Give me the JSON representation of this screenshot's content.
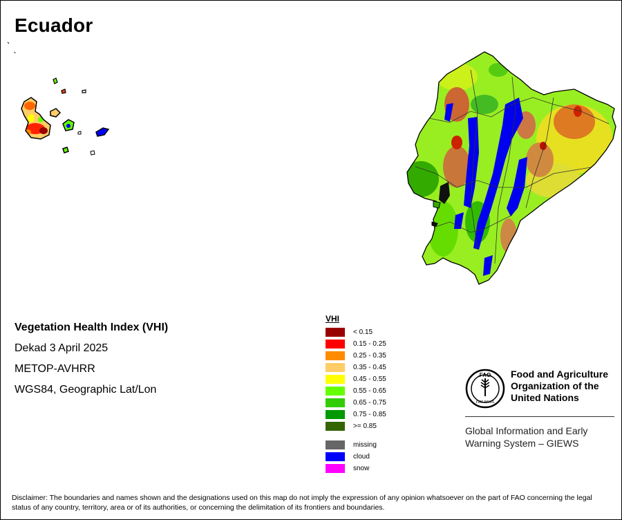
{
  "map": {
    "title": "Ecuador"
  },
  "info": {
    "index_name": "Vegetation Health Index (VHI)",
    "period": "Dekad 3 April 2025",
    "sensor": "METOP-AVHRR",
    "projection": "WGS84, Geographic Lat/Lon"
  },
  "legend": {
    "title": "VHI",
    "classes": [
      {
        "label": "< 0.15",
        "color": "#990000"
      },
      {
        "label": "0.15 - 0.25",
        "color": "#ff0000"
      },
      {
        "label": "0.25 - 0.35",
        "color": "#ff8c00"
      },
      {
        "label": "0.35 - 0.45",
        "color": "#ffcc66"
      },
      {
        "label": "0.45 - 0.55",
        "color": "#ffff00"
      },
      {
        "label": "0.55 - 0.65",
        "color": "#66ff00"
      },
      {
        "label": "0.65 - 0.75",
        "color": "#33cc00"
      },
      {
        "label": "0.75 - 0.85",
        "color": "#009900"
      },
      {
        "label": ">= 0.85",
        "color": "#336600"
      }
    ],
    "special": [
      {
        "label": "missing",
        "color": "#666666"
      },
      {
        "label": "cloud",
        "color": "#0000ff"
      },
      {
        "label": "snow",
        "color": "#ff00ff"
      }
    ]
  },
  "logo": {
    "emblem_letters": "FAO",
    "emblem_motto": "FIAT PANIS",
    "org_line1": "Food and Agriculture",
    "org_line2": "Organization of the",
    "org_line3": "United Nations",
    "system_line1": "Global Information and Early",
    "system_line2": "Warning System – GIEWS"
  },
  "disclaimer": "Disclaimer: The boundaries and names shown and the designations used on this map do not imply the expression of any opinion whatsoever on the part of FAO concerning the legal status of any country, territory, area or of its authorities, or concerning the delimitation of its frontiers and boundaries."
}
